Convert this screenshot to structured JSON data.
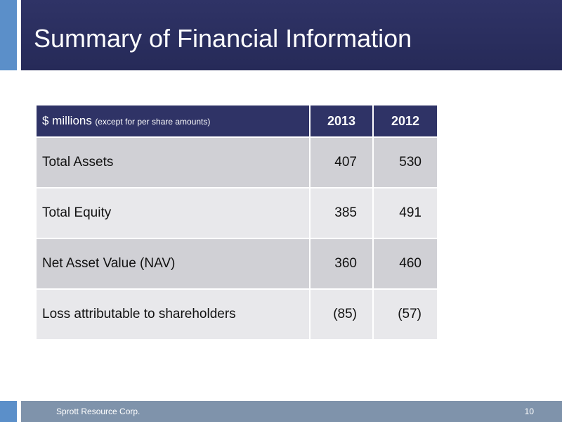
{
  "title": "Summary of Financial Information",
  "table": {
    "header": {
      "unit_label": "$ millions",
      "unit_note": "(except for per share amounts)",
      "years": [
        "2013",
        "2012"
      ]
    },
    "rows": [
      {
        "label": "Total Assets",
        "v2013": "407",
        "v2012": "530"
      },
      {
        "label": "Total Equity",
        "v2013": "385",
        "v2012": "491"
      },
      {
        "label": "Net Asset Value (NAV)",
        "v2013": "360",
        "v2012": "460"
      },
      {
        "label": "Loss attributable to shareholders",
        "v2013": "(85)",
        "v2012": "(57)"
      }
    ]
  },
  "footer": {
    "company": "Sprott Resource Corp.",
    "page_number": "10"
  },
  "colors": {
    "title_bar": "#2f3366",
    "accent": "#5b8fc9",
    "footer_bar": "#7f93ab",
    "row_dark": "#d0d0d5",
    "row_light": "#e8e8eb"
  }
}
